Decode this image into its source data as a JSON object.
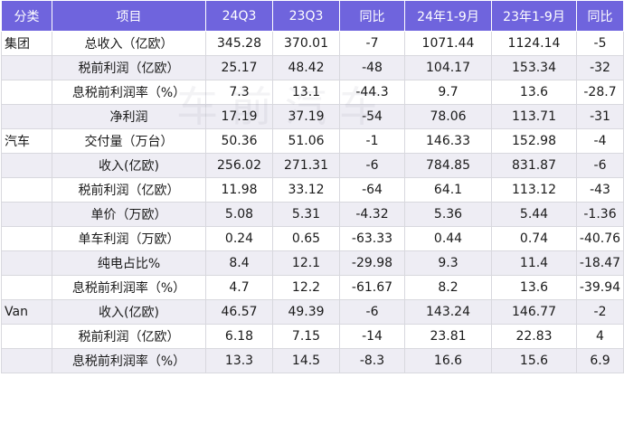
{
  "headers": [
    "分类",
    "项目",
    "24Q3",
    "23Q3",
    "同比",
    "24年1-9月",
    "23年1-9月",
    "同比"
  ],
  "rows": [
    {
      "cat": "集团",
      "item": "总收入（亿欧）",
      "v": [
        "345.28",
        "370.01",
        "-7",
        "1071.44",
        "1124.14",
        "-5"
      ]
    },
    {
      "cat": "",
      "item": "税前利润（亿欧）",
      "v": [
        "25.17",
        "48.42",
        "-48",
        "104.17",
        "153.34",
        "-32"
      ]
    },
    {
      "cat": "",
      "item": "息税前利润率（%）",
      "v": [
        "7.3",
        "13.1",
        "-44.3",
        "9.7",
        "13.6",
        "-28.7"
      ]
    },
    {
      "cat": "",
      "item": "净利润",
      "v": [
        "17.19",
        "37.19",
        "-54",
        "78.06",
        "113.71",
        "-31"
      ]
    },
    {
      "cat": "汽车",
      "item": "交付量（万台）",
      "v": [
        "50.36",
        "51.06",
        "-1",
        "146.33",
        "152.98",
        "-4"
      ]
    },
    {
      "cat": "",
      "item": "收入(亿欧)",
      "v": [
        "256.02",
        "271.31",
        "-6",
        "784.85",
        "831.87",
        "-6"
      ]
    },
    {
      "cat": "",
      "item": "税前利润（亿欧）",
      "v": [
        "11.98",
        "33.12",
        "-64",
        "64.1",
        "113.12",
        "-43"
      ]
    },
    {
      "cat": "",
      "item": "单价（万欧）",
      "v": [
        "5.08",
        "5.31",
        "-4.32",
        "5.36",
        "5.44",
        "-1.36"
      ]
    },
    {
      "cat": "",
      "item": "单车利润（万欧）",
      "v": [
        "0.24",
        "0.65",
        "-63.33",
        "0.44",
        "0.74",
        "-40.76"
      ]
    },
    {
      "cat": "",
      "item": "纯电占比%",
      "v": [
        "8.4",
        "12.1",
        "-29.98",
        "9.3",
        "11.4",
        "-18.47"
      ]
    },
    {
      "cat": "",
      "item": "息税前利润率（%）",
      "v": [
        "4.7",
        "12.2",
        "-61.67",
        "8.2",
        "13.6",
        "-39.94"
      ]
    },
    {
      "cat": "Van",
      "item": "收入(亿欧)",
      "v": [
        "46.57",
        "49.39",
        "-6",
        "143.24",
        "146.77",
        "-2"
      ]
    },
    {
      "cat": "",
      "item": "税前利润（亿欧）",
      "v": [
        "6.18",
        "7.15",
        "-14",
        "23.81",
        "22.83",
        "4"
      ]
    },
    {
      "cat": "",
      "item": "息税前利润率（%）",
      "v": [
        "13.3",
        "14.5",
        "-8.3",
        "16.6",
        "15.6",
        "6.9"
      ]
    }
  ],
  "watermark": "车前汽车",
  "colors": {
    "header_bg": "#6f64dd",
    "header_text": "#ffffff",
    "stripe": "#eeedf4"
  }
}
